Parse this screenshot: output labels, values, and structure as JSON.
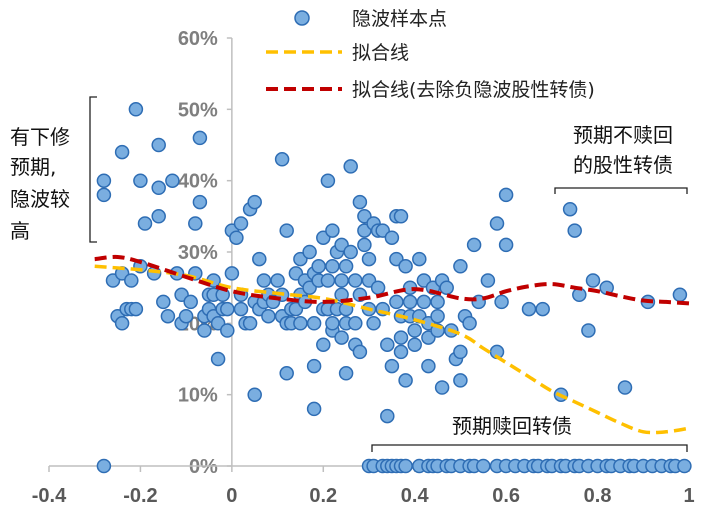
{
  "colors": {
    "points": "#7aaee0",
    "points_edge": "#2e6db4",
    "fit_all": "#ffc000",
    "fit_excl": "#c00000",
    "axis": "#bfbfbf"
  },
  "chart_data": {
    "type": "scatter",
    "xlim": [
      -0.4,
      1.0
    ],
    "ylim": [
      0,
      60
    ],
    "x_ticks": [
      "-0.4",
      "-0.2",
      "0",
      "0.2",
      "0.4",
      "0.6",
      "0.8",
      "1"
    ],
    "y_ticks": [
      "0%",
      "10%",
      "20%",
      "30%",
      "40%",
      "50%",
      "60%"
    ],
    "legend": {
      "placement": "top-center",
      "points": "隐波样本点",
      "fit_all": "拟合线",
      "fit_excl": "拟合线(去除负隐波股性转债)"
    },
    "annotations": {
      "left_1": "有下修",
      "left_2": "预期,",
      "left_3": "隐波较",
      "left_4": "高",
      "right_1": "预期不赎回",
      "right_2": "的股性转债",
      "bottom": "预期赎回转债"
    },
    "scatter_points": [
      [
        -0.28,
        0
      ],
      [
        -0.28,
        38
      ],
      [
        -0.28,
        40
      ],
      [
        -0.26,
        26
      ],
      [
        -0.25,
        21
      ],
      [
        -0.24,
        20
      ],
      [
        -0.24,
        27
      ],
      [
        -0.24,
        44
      ],
      [
        -0.23,
        22
      ],
      [
        -0.22,
        26
      ],
      [
        -0.22,
        22
      ],
      [
        -0.21,
        50
      ],
      [
        -0.21,
        22
      ],
      [
        -0.2,
        40
      ],
      [
        -0.2,
        28
      ],
      [
        -0.19,
        34
      ],
      [
        -0.17,
        27
      ],
      [
        -0.16,
        45
      ],
      [
        -0.16,
        39
      ],
      [
        -0.16,
        35
      ],
      [
        -0.15,
        23
      ],
      [
        -0.14,
        21
      ],
      [
        -0.13,
        40
      ],
      [
        -0.12,
        27
      ],
      [
        -0.11,
        20
      ],
      [
        -0.11,
        24
      ],
      [
        -0.1,
        21
      ],
      [
        -0.09,
        23
      ],
      [
        -0.08,
        27
      ],
      [
        -0.08,
        34
      ],
      [
        -0.07,
        37
      ],
      [
        -0.07,
        46
      ],
      [
        -0.06,
        19
      ],
      [
        -0.06,
        21
      ],
      [
        -0.05,
        22
      ],
      [
        -0.05,
        24
      ],
      [
        -0.04,
        21
      ],
      [
        -0.04,
        24
      ],
      [
        -0.04,
        26
      ],
      [
        -0.03,
        15
      ],
      [
        -0.03,
        20
      ],
      [
        -0.02,
        22
      ],
      [
        -0.02,
        24
      ],
      [
        -0.01,
        19
      ],
      [
        -0.01,
        22
      ],
      [
        0.0,
        33
      ],
      [
        0.0,
        27
      ],
      [
        0.01,
        32
      ],
      [
        0.02,
        34
      ],
      [
        0.02,
        24
      ],
      [
        0.02,
        22
      ],
      [
        0.03,
        20
      ],
      [
        0.04,
        20
      ],
      [
        0.04,
        36
      ],
      [
        0.05,
        37
      ],
      [
        0.05,
        23
      ],
      [
        0.05,
        10
      ],
      [
        0.06,
        22
      ],
      [
        0.06,
        29
      ],
      [
        0.07,
        26
      ],
      [
        0.07,
        23
      ],
      [
        0.08,
        21
      ],
      [
        0.08,
        24
      ],
      [
        0.09,
        23
      ],
      [
        0.1,
        26
      ],
      [
        0.11,
        24
      ],
      [
        0.11,
        43
      ],
      [
        0.11,
        21
      ],
      [
        0.12,
        20
      ],
      [
        0.12,
        13
      ],
      [
        0.12,
        33
      ],
      [
        0.13,
        22
      ],
      [
        0.13,
        20
      ],
      [
        0.14,
        27
      ],
      [
        0.14,
        22
      ],
      [
        0.15,
        24
      ],
      [
        0.15,
        20
      ],
      [
        0.15,
        29
      ],
      [
        0.16,
        26
      ],
      [
        0.16,
        23
      ],
      [
        0.17,
        25
      ],
      [
        0.17,
        30
      ],
      [
        0.18,
        27
      ],
      [
        0.18,
        20
      ],
      [
        0.18,
        14
      ],
      [
        0.18,
        8
      ],
      [
        0.19,
        28
      ],
      [
        0.19,
        26
      ],
      [
        0.2,
        32
      ],
      [
        0.2,
        22
      ],
      [
        0.2,
        17
      ],
      [
        0.21,
        22
      ],
      [
        0.21,
        40
      ],
      [
        0.21,
        26
      ],
      [
        0.22,
        33
      ],
      [
        0.22,
        28
      ],
      [
        0.22,
        19
      ],
      [
        0.22,
        20
      ],
      [
        0.23,
        30
      ],
      [
        0.23,
        22
      ],
      [
        0.24,
        24
      ],
      [
        0.24,
        31
      ],
      [
        0.24,
        26
      ],
      [
        0.24,
        18
      ],
      [
        0.25,
        28
      ],
      [
        0.25,
        22
      ],
      [
        0.25,
        20
      ],
      [
        0.25,
        13
      ],
      [
        0.26,
        42
      ],
      [
        0.26,
        30
      ],
      [
        0.27,
        20
      ],
      [
        0.27,
        26
      ],
      [
        0.27,
        17
      ],
      [
        0.28,
        37
      ],
      [
        0.28,
        24
      ],
      [
        0.28,
        16
      ],
      [
        0.29,
        35
      ],
      [
        0.29,
        33
      ],
      [
        0.29,
        31
      ],
      [
        0.3,
        29
      ],
      [
        0.3,
        22
      ],
      [
        0.3,
        26
      ],
      [
        0.31,
        34
      ],
      [
        0.31,
        20
      ],
      [
        0.32,
        33
      ],
      [
        0.32,
        25
      ],
      [
        0.33,
        22
      ],
      [
        0.33,
        33
      ],
      [
        0.34,
        17
      ],
      [
        0.34,
        7
      ],
      [
        0.35,
        14
      ],
      [
        0.35,
        32
      ],
      [
        0.36,
        35
      ],
      [
        0.36,
        29
      ],
      [
        0.36,
        23
      ],
      [
        0.37,
        35
      ],
      [
        0.37,
        21
      ],
      [
        0.37,
        18
      ],
      [
        0.37,
        16
      ],
      [
        0.38,
        28
      ],
      [
        0.38,
        12
      ],
      [
        0.39,
        21
      ],
      [
        0.39,
        23
      ],
      [
        0.39,
        25
      ],
      [
        0.4,
        17
      ],
      [
        0.4,
        19
      ],
      [
        0.41,
        29
      ],
      [
        0.41,
        21
      ],
      [
        0.42,
        26
      ],
      [
        0.42,
        23
      ],
      [
        0.43,
        18
      ],
      [
        0.43,
        20
      ],
      [
        0.43,
        14
      ],
      [
        0.44,
        25
      ],
      [
        0.45,
        21
      ],
      [
        0.45,
        19
      ],
      [
        0.45,
        23
      ],
      [
        0.46,
        11
      ],
      [
        0.46,
        26
      ],
      [
        0.47,
        25
      ],
      [
        0.48,
        19
      ],
      [
        0.49,
        15
      ],
      [
        0.5,
        28
      ],
      [
        0.5,
        16
      ],
      [
        0.5,
        12
      ],
      [
        0.51,
        21
      ],
      [
        0.52,
        20
      ],
      [
        0.53,
        31
      ],
      [
        0.54,
        23
      ],
      [
        0.56,
        26
      ],
      [
        0.58,
        34
      ],
      [
        0.58,
        16
      ],
      [
        0.59,
        23
      ],
      [
        0.6,
        38
      ],
      [
        0.6,
        31
      ],
      [
        0.65,
        22
      ],
      [
        0.68,
        22
      ],
      [
        0.72,
        10
      ],
      [
        0.74,
        36
      ],
      [
        0.75,
        33
      ],
      [
        0.76,
        24
      ],
      [
        0.78,
        19
      ],
      [
        0.79,
        26
      ],
      [
        0.82,
        25
      ],
      [
        0.86,
        11
      ],
      [
        0.91,
        23
      ],
      [
        0.98,
        24
      ],
      [
        0.3,
        0
      ],
      [
        0.31,
        0
      ],
      [
        0.33,
        0
      ],
      [
        0.34,
        0
      ],
      [
        0.35,
        0
      ],
      [
        0.36,
        0
      ],
      [
        0.37,
        0
      ],
      [
        0.38,
        0
      ],
      [
        0.41,
        0
      ],
      [
        0.43,
        0
      ],
      [
        0.44,
        0
      ],
      [
        0.45,
        0
      ],
      [
        0.47,
        0
      ],
      [
        0.48,
        0
      ],
      [
        0.5,
        0
      ],
      [
        0.52,
        0
      ],
      [
        0.53,
        0
      ],
      [
        0.55,
        0
      ],
      [
        0.58,
        0
      ],
      [
        0.6,
        0
      ],
      [
        0.62,
        0
      ],
      [
        0.64,
        0
      ],
      [
        0.66,
        0
      ],
      [
        0.67,
        0
      ],
      [
        0.69,
        0
      ],
      [
        0.7,
        0
      ],
      [
        0.72,
        0
      ],
      [
        0.73,
        0
      ],
      [
        0.75,
        0
      ],
      [
        0.76,
        0
      ],
      [
        0.78,
        0
      ],
      [
        0.8,
        0
      ],
      [
        0.82,
        0
      ],
      [
        0.83,
        0
      ],
      [
        0.85,
        0
      ],
      [
        0.87,
        0
      ],
      [
        0.88,
        0
      ],
      [
        0.9,
        0
      ],
      [
        0.92,
        0
      ],
      [
        0.94,
        0
      ],
      [
        0.96,
        0
      ],
      [
        0.97,
        0
      ],
      [
        0.99,
        0
      ]
    ],
    "fit_all": [
      [
        -0.3,
        28
      ],
      [
        -0.2,
        27.5
      ],
      [
        -0.1,
        26.7
      ],
      [
        0,
        25
      ],
      [
        0.1,
        24.2
      ],
      [
        0.2,
        23.5
      ],
      [
        0.3,
        22
      ],
      [
        0.4,
        20.5
      ],
      [
        0.5,
        18.5
      ],
      [
        0.55,
        16.5
      ],
      [
        0.6,
        14.5
      ],
      [
        0.65,
        12.5
      ],
      [
        0.7,
        10.5
      ],
      [
        0.75,
        9
      ],
      [
        0.8,
        7.5
      ],
      [
        0.85,
        6
      ],
      [
        0.9,
        4.8
      ],
      [
        0.95,
        4.8
      ],
      [
        1.0,
        5.3
      ]
    ],
    "fit_excl": [
      [
        -0.3,
        29
      ],
      [
        -0.25,
        29.3
      ],
      [
        -0.2,
        28.6
      ],
      [
        -0.1,
        26.5
      ],
      [
        0,
        24.5
      ],
      [
        0.1,
        23.5
      ],
      [
        0.2,
        23.0
      ],
      [
        0.3,
        23.6
      ],
      [
        0.4,
        24.8
      ],
      [
        0.5,
        23.5
      ],
      [
        0.55,
        23.5
      ],
      [
        0.6,
        24.5
      ],
      [
        0.65,
        25.2
      ],
      [
        0.7,
        25.5
      ],
      [
        0.75,
        25.0
      ],
      [
        0.8,
        24.5
      ],
      [
        0.85,
        23.8
      ],
      [
        0.9,
        23.2
      ],
      [
        0.95,
        23.0
      ],
      [
        1.0,
        22.8
      ]
    ]
  }
}
